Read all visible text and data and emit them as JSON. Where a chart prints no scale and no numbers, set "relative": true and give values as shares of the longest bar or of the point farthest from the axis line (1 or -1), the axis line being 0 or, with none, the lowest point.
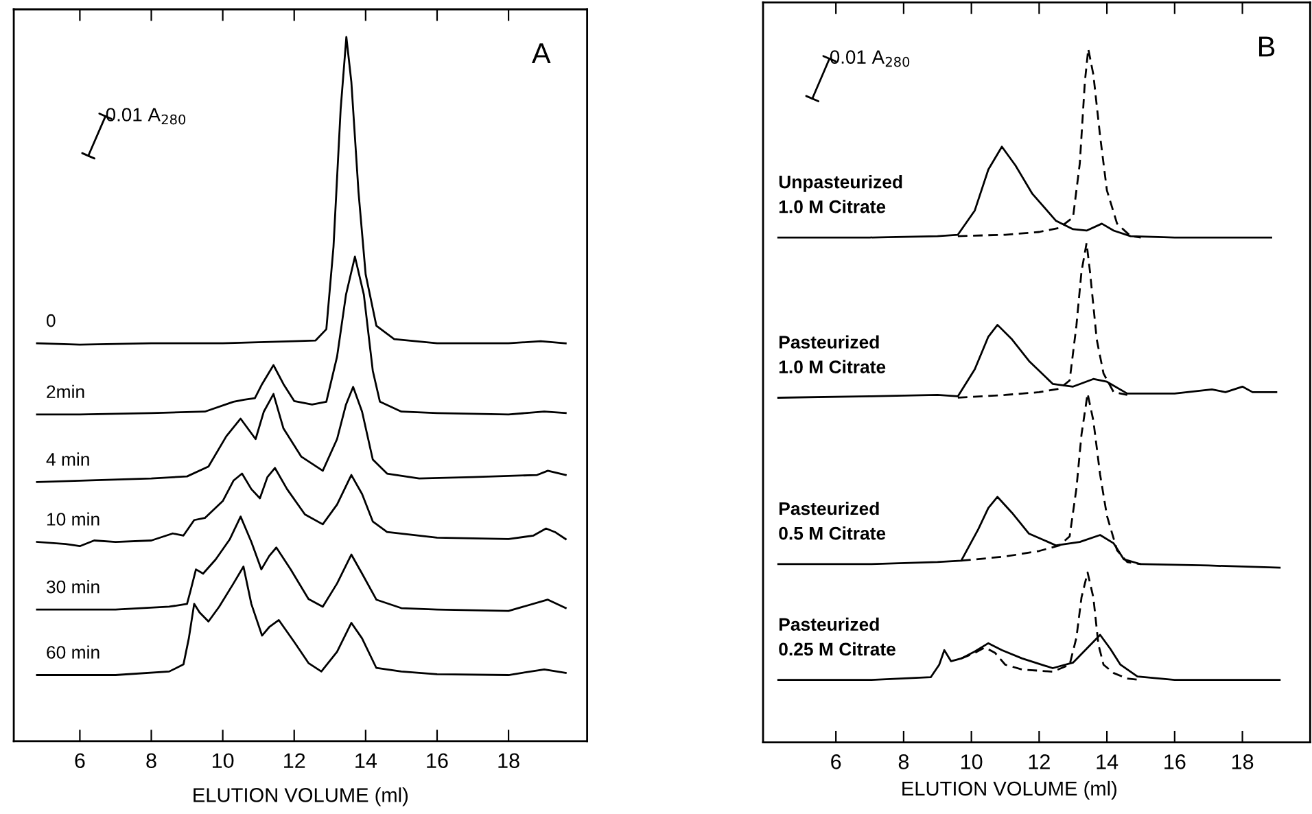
{
  "chart_data": [
    {
      "type": "line",
      "title": "A",
      "xlabel": "ELUTION VOLUME (ml)",
      "relative": true,
      "xlim": [
        4.15,
        20.2
      ],
      "xticks": [
        6,
        8,
        10,
        12,
        14,
        16,
        18
      ],
      "tick_labels": "x",
      "grid": false,
      "legend": false,
      "marker": "none",
      "line_style": "solid",
      "annotations": [
        "0.01 A$_{280}$"
      ],
      "series": [
        {
          "name": "0",
          "color": "#000000",
          "x": [
            4.8,
            6,
            8,
            10,
            12,
            12.6,
            12.9,
            13.1,
            13.3,
            13.46,
            13.6,
            13.8,
            14.0,
            14.3,
            14.8,
            16,
            18,
            18.9,
            19.6
          ],
          "values": [
            0.565,
            0.563,
            0.565,
            0.565,
            0.568,
            0.569,
            0.585,
            0.702,
            0.897,
            1.0,
            0.936,
            0.78,
            0.663,
            0.59,
            0.571,
            0.565,
            0.565,
            0.568,
            0.565
          ]
        },
        {
          "name": "2min",
          "color": "#000000",
          "x": [
            4.8,
            6,
            8,
            9.5,
            10.3,
            10.6,
            10.9,
            11.1,
            11.42,
            11.7,
            12,
            12.5,
            12.9,
            13.2,
            13.45,
            13.7,
            13.95,
            14.2,
            14.4,
            15,
            16,
            18,
            19,
            19.6
          ],
          "values": [
            0.464,
            0.464,
            0.466,
            0.468,
            0.482,
            0.485,
            0.487,
            0.507,
            0.534,
            0.507,
            0.483,
            0.478,
            0.482,
            0.546,
            0.634,
            0.688,
            0.634,
            0.526,
            0.482,
            0.468,
            0.466,
            0.464,
            0.468,
            0.466
          ]
        },
        {
          "name": "4 min",
          "color": "#000000",
          "x": [
            4.8,
            6,
            8,
            9,
            9.6,
            10.1,
            10.5,
            10.92,
            11.15,
            11.42,
            11.7,
            12.2,
            12.8,
            13.2,
            13.45,
            13.65,
            13.9,
            14.2,
            14.6,
            15.5,
            17,
            18.8,
            19.1,
            19.6
          ],
          "values": [
            0.368,
            0.37,
            0.373,
            0.376,
            0.39,
            0.433,
            0.458,
            0.429,
            0.468,
            0.493,
            0.444,
            0.404,
            0.384,
            0.429,
            0.478,
            0.503,
            0.468,
            0.4,
            0.38,
            0.373,
            0.375,
            0.378,
            0.384,
            0.378
          ]
        },
        {
          "name": "10 min",
          "color": "#000000",
          "x": [
            4.8,
            5.6,
            6.0,
            6.4,
            7,
            8,
            8.6,
            8.9,
            9.2,
            9.5,
            10.0,
            10.3,
            10.54,
            10.8,
            11.04,
            11.25,
            11.46,
            11.8,
            12.3,
            12.8,
            13.2,
            13.6,
            13.9,
            14.2,
            14.6,
            16,
            18,
            18.7,
            19.05,
            19.3,
            19.6
          ],
          "values": [
            0.283,
            0.28,
            0.277,
            0.285,
            0.283,
            0.285,
            0.295,
            0.292,
            0.314,
            0.317,
            0.341,
            0.37,
            0.38,
            0.358,
            0.345,
            0.375,
            0.388,
            0.358,
            0.322,
            0.308,
            0.336,
            0.378,
            0.351,
            0.312,
            0.297,
            0.289,
            0.287,
            0.292,
            0.302,
            0.297,
            0.287
          ]
        },
        {
          "name": "30 min",
          "color": "#000000",
          "x": [
            4.8,
            7,
            8.5,
            9.0,
            9.1,
            9.25,
            9.45,
            9.8,
            10.2,
            10.5,
            10.8,
            11.08,
            11.3,
            11.5,
            11.9,
            12.4,
            12.8,
            13.2,
            13.6,
            13.9,
            14.3,
            15,
            16,
            18,
            19.1,
            19.6
          ],
          "values": [
            0.187,
            0.187,
            0.191,
            0.195,
            0.214,
            0.244,
            0.238,
            0.258,
            0.287,
            0.319,
            0.283,
            0.244,
            0.263,
            0.275,
            0.244,
            0.202,
            0.191,
            0.224,
            0.265,
            0.238,
            0.201,
            0.189,
            0.187,
            0.185,
            0.201,
            0.189
          ]
        },
        {
          "name": "60 min",
          "color": "#000000",
          "x": [
            4.8,
            7,
            8.5,
            8.9,
            9.05,
            9.2,
            9.35,
            9.6,
            9.9,
            10.3,
            10.58,
            10.8,
            11.1,
            11.3,
            11.57,
            12.0,
            12.4,
            12.76,
            13.2,
            13.6,
            13.9,
            14.3,
            15,
            16,
            18,
            19.0,
            19.6
          ],
          "values": [
            0.094,
            0.094,
            0.099,
            0.109,
            0.146,
            0.195,
            0.183,
            0.17,
            0.191,
            0.224,
            0.248,
            0.195,
            0.15,
            0.162,
            0.172,
            0.141,
            0.111,
            0.099,
            0.127,
            0.168,
            0.146,
            0.104,
            0.099,
            0.095,
            0.094,
            0.102,
            0.097
          ]
        }
      ]
    },
    {
      "type": "line",
      "title": "B",
      "xlabel": "ELUTION VOLUME (ml)",
      "relative": true,
      "xlim": [
        3.85,
        20.0
      ],
      "xticks": [
        6,
        8,
        10,
        12,
        14,
        16,
        18
      ],
      "tick_labels": "x",
      "grid": false,
      "legend": false,
      "marker": "none",
      "line_style": "solid",
      "annotations": [
        "0.01 A$_{280}$"
      ],
      "series": [
        {
          "name": "Unpasteurized\n1.0 M Citrate",
          "color": "#000000",
          "x": [
            4.3,
            7,
            9,
            9.6,
            10.1,
            10.5,
            10.9,
            11.3,
            11.8,
            12.5,
            13.0,
            13.4,
            13.85,
            14.2,
            14.7,
            16,
            18.85
          ],
          "values": [
            0.728,
            0.728,
            0.73,
            0.732,
            0.767,
            0.826,
            0.859,
            0.832,
            0.791,
            0.752,
            0.74,
            0.738,
            0.748,
            0.738,
            0.73,
            0.728,
            0.728
          ]
        },
        {
          "color": "#000000",
          "line_style": "dashed",
          "x": [
            9.6,
            11,
            12,
            12.6,
            13.0,
            13.2,
            13.35,
            13.45,
            13.6,
            13.8,
            14.0,
            14.3,
            14.7,
            15
          ],
          "values": [
            0.73,
            0.732,
            0.736,
            0.742,
            0.757,
            0.835,
            0.953,
            1.0,
            0.963,
            0.874,
            0.796,
            0.748,
            0.73,
            0.728
          ]
        },
        {
          "name": "Pasteurized\n1.0 M Citrate",
          "color": "#000000",
          "x": [
            4.3,
            7,
            9,
            9.6,
            10.1,
            10.5,
            10.77,
            11.2,
            11.7,
            12.4,
            13.0,
            13.6,
            14.0,
            14.6,
            16,
            17.1,
            17.5,
            18.0,
            18.3,
            19.0
          ],
          "values": [
            0.497,
            0.499,
            0.501,
            0.499,
            0.538,
            0.585,
            0.602,
            0.581,
            0.55,
            0.517,
            0.513,
            0.524,
            0.52,
            0.503,
            0.503,
            0.509,
            0.505,
            0.513,
            0.505,
            0.505
          ]
        },
        {
          "color": "#000000",
          "line_style": "dashed",
          "x": [
            9.6,
            11,
            12,
            12.6,
            12.9,
            13.1,
            13.25,
            13.4,
            13.5,
            13.7,
            13.9,
            14.2,
            14.6
          ],
          "values": [
            0.497,
            0.501,
            0.505,
            0.51,
            0.522,
            0.601,
            0.679,
            0.72,
            0.679,
            0.581,
            0.532,
            0.505,
            0.501
          ]
        },
        {
          "name": "Pasteurized\n0.5 M Citrate",
          "color": "#000000",
          "x": [
            4.3,
            7,
            9,
            9.7,
            10.2,
            10.5,
            10.77,
            11.2,
            11.7,
            12.5,
            13.2,
            13.8,
            14.2,
            14.5,
            15,
            17,
            19.1
          ],
          "values": [
            0.257,
            0.257,
            0.26,
            0.262,
            0.307,
            0.338,
            0.354,
            0.331,
            0.301,
            0.284,
            0.289,
            0.299,
            0.287,
            0.264,
            0.257,
            0.255,
            0.252
          ]
        },
        {
          "color": "#000000",
          "line_style": "dashed",
          "x": [
            9.7,
            11,
            12,
            12.6,
            12.9,
            13.1,
            13.25,
            13.43,
            13.6,
            13.8,
            14.0,
            14.3,
            14.6,
            15
          ],
          "values": [
            0.262,
            0.268,
            0.276,
            0.284,
            0.297,
            0.366,
            0.444,
            0.503,
            0.464,
            0.386,
            0.327,
            0.277,
            0.26,
            0.257
          ]
        },
        {
          "name": "Pasteurized\n0.25 M Citrate",
          "color": "#000000",
          "x": [
            4.3,
            7,
            8.8,
            9.05,
            9.2,
            9.4,
            9.7,
            10.1,
            10.5,
            10.9,
            11.5,
            12.4,
            13.0,
            13.4,
            13.8,
            14.1,
            14.4,
            14.9,
            16,
            18.5,
            19.1
          ],
          "values": [
            0.09,
            0.09,
            0.094,
            0.112,
            0.133,
            0.117,
            0.121,
            0.131,
            0.143,
            0.133,
            0.121,
            0.107,
            0.115,
            0.135,
            0.155,
            0.135,
            0.112,
            0.095,
            0.09,
            0.09,
            0.09
          ]
        },
        {
          "color": "#000000",
          "line_style": "dashed",
          "x": [
            9.7,
            10.1,
            10.4,
            10.7,
            11.0,
            11.5,
            12.4,
            12.9,
            13.1,
            13.25,
            13.43,
            13.6,
            13.75,
            13.9,
            14.2,
            14.6,
            15
          ],
          "values": [
            0.121,
            0.129,
            0.137,
            0.129,
            0.112,
            0.105,
            0.102,
            0.112,
            0.151,
            0.209,
            0.245,
            0.209,
            0.141,
            0.112,
            0.1,
            0.092,
            0.09
          ]
        }
      ]
    }
  ]
}
